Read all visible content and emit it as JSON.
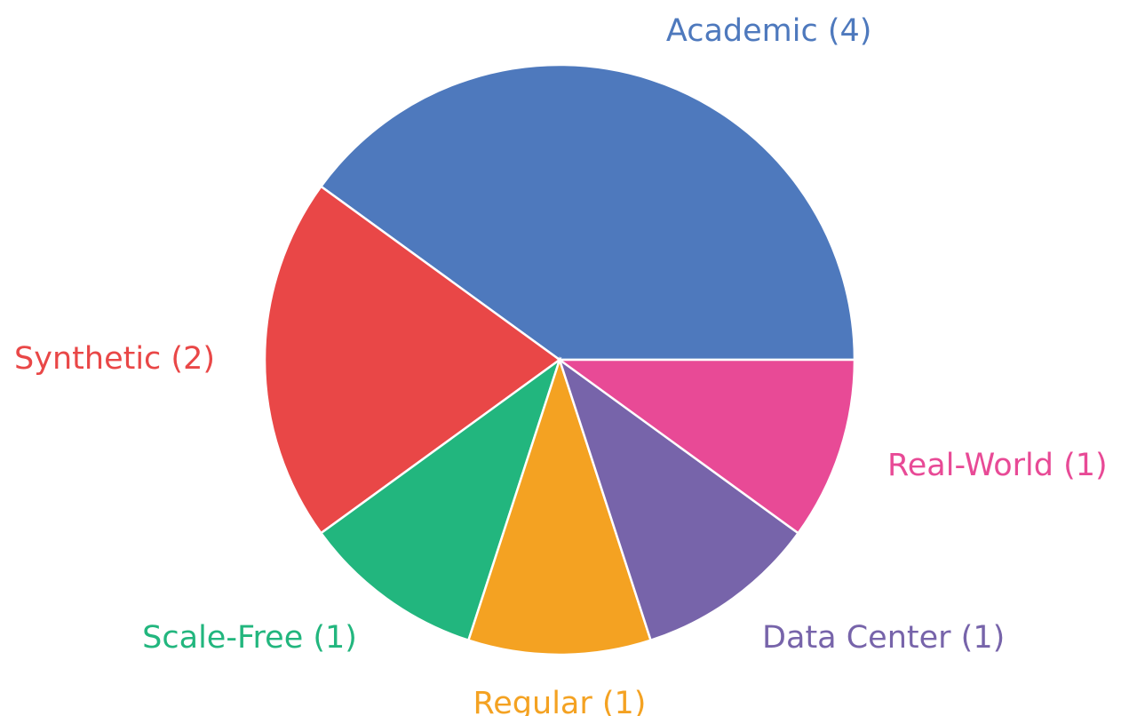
{
  "chart_data": {
    "type": "pie",
    "categories": [
      "Academic (4)",
      "Synthetic (2)",
      "Scale-Free (1)",
      "Regular (1)",
      "Data Center (1)",
      "Real-World (1)"
    ],
    "values": [
      4,
      2,
      1,
      1,
      1,
      1
    ],
    "colors": [
      "#4e79bd",
      "#e94747",
      "#22b67e",
      "#f4a222",
      "#7764aa",
      "#e84a96"
    ]
  }
}
